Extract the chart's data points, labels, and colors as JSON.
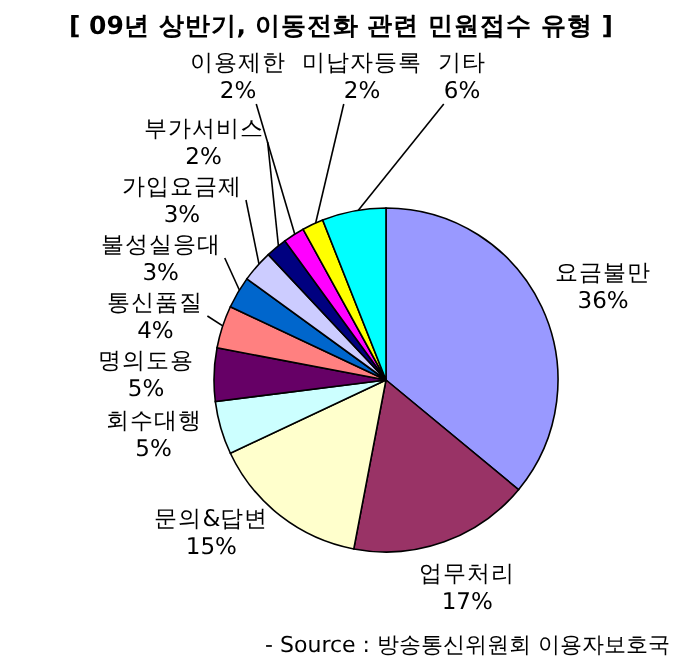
{
  "chart_data": {
    "type": "pie",
    "title": "[ 09년 상반기, 이동전화 관련 민원접수 유형 ]",
    "categories": [
      "요금불만",
      "업무처리",
      "문의&답변",
      "회수대행",
      "명의도용",
      "통신품질",
      "불성실응대",
      "가입요금제",
      "부가서비스",
      "이용제한",
      "미납자등록",
      "기타"
    ],
    "values": [
      36,
      17,
      15,
      5,
      5,
      4,
      3,
      3,
      2,
      2,
      2,
      6
    ],
    "colors": [
      "#9999ff",
      "#993366",
      "#ffffcc",
      "#ccffff",
      "#660066",
      "#ff8080",
      "#0066cc",
      "#ccccff",
      "#000080",
      "#ff00ff",
      "#ffff00",
      "#00ffff"
    ],
    "value_labels": [
      "36%",
      "17%",
      "15%",
      "5%",
      "5%",
      "4%",
      "3%",
      "3%",
      "2%",
      "2%",
      "2%",
      "6%"
    ],
    "annotations": [
      "- Source : 방송통신위원회 이용자보호국"
    ]
  }
}
